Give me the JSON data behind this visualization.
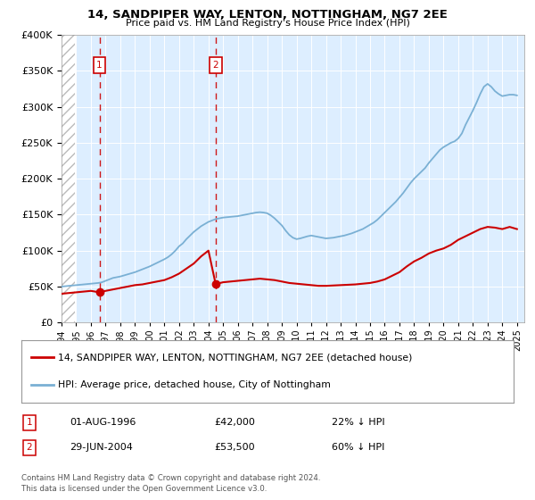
{
  "title": "14, SANDPIPER WAY, LENTON, NOTTINGHAM, NG7 2EE",
  "subtitle": "Price paid vs. HM Land Registry's House Price Index (HPI)",
  "sale1_date": 1996.58,
  "sale1_price": 42000,
  "sale2_date": 2004.49,
  "sale2_price": 53500,
  "legend_line1": "14, SANDPIPER WAY, LENTON, NOTTINGHAM, NG7 2EE (detached house)",
  "legend_line2": "HPI: Average price, detached house, City of Nottingham",
  "ann1_date": "01-AUG-1996",
  "ann1_price": "£42,000",
  "ann1_pct": "22% ↓ HPI",
  "ann2_date": "29-JUN-2004",
  "ann2_price": "£53,500",
  "ann2_pct": "60% ↓ HPI",
  "footer1": "Contains HM Land Registry data © Crown copyright and database right 2024.",
  "footer2": "This data is licensed under the Open Government Licence v3.0.",
  "xmin": 1994,
  "xmax": 2025.5,
  "ymin": 0,
  "ymax": 400000,
  "red_color": "#cc0000",
  "blue_color": "#7ab0d4",
  "bg_color": "#ddeeff",
  "hatch_color": "#bbbbbb",
  "years_hpi": [
    1994.0,
    1994.25,
    1994.5,
    1994.75,
    1995.0,
    1995.25,
    1995.5,
    1995.75,
    1996.0,
    1996.25,
    1996.5,
    1996.75,
    1997.0,
    1997.25,
    1997.5,
    1997.75,
    1998.0,
    1998.25,
    1998.5,
    1998.75,
    1999.0,
    1999.25,
    1999.5,
    1999.75,
    2000.0,
    2000.25,
    2000.5,
    2000.75,
    2001.0,
    2001.25,
    2001.5,
    2001.75,
    2002.0,
    2002.25,
    2002.5,
    2002.75,
    2003.0,
    2003.25,
    2003.5,
    2003.75,
    2004.0,
    2004.25,
    2004.5,
    2004.75,
    2005.0,
    2005.25,
    2005.5,
    2005.75,
    2006.0,
    2006.25,
    2006.5,
    2006.75,
    2007.0,
    2007.25,
    2007.5,
    2007.75,
    2008.0,
    2008.25,
    2008.5,
    2008.75,
    2009.0,
    2009.25,
    2009.5,
    2009.75,
    2010.0,
    2010.25,
    2010.5,
    2010.75,
    2011.0,
    2011.25,
    2011.5,
    2011.75,
    2012.0,
    2012.25,
    2012.5,
    2012.75,
    2013.0,
    2013.25,
    2013.5,
    2013.75,
    2014.0,
    2014.25,
    2014.5,
    2014.75,
    2015.0,
    2015.25,
    2015.5,
    2015.75,
    2016.0,
    2016.25,
    2016.5,
    2016.75,
    2017.0,
    2017.25,
    2017.5,
    2017.75,
    2018.0,
    2018.25,
    2018.5,
    2018.75,
    2019.0,
    2019.25,
    2019.5,
    2019.75,
    2020.0,
    2020.25,
    2020.5,
    2020.75,
    2021.0,
    2021.25,
    2021.5,
    2021.75,
    2022.0,
    2022.25,
    2022.5,
    2022.75,
    2023.0,
    2023.25,
    2023.5,
    2023.75,
    2024.0,
    2024.25,
    2024.5,
    2024.75,
    2025.0
  ],
  "hpi_values": [
    50000,
    50500,
    51000,
    51500,
    52000,
    52500,
    53000,
    53500,
    54000,
    54500,
    55000,
    56000,
    58000,
    60000,
    62000,
    63000,
    64000,
    65500,
    67000,
    68500,
    70000,
    72000,
    74000,
    76000,
    78000,
    80500,
    83000,
    85500,
    88000,
    91000,
    95000,
    100000,
    106000,
    110000,
    116000,
    121000,
    126000,
    130000,
    134000,
    137000,
    140000,
    142000,
    144000,
    145000,
    146000,
    146500,
    147000,
    147500,
    148000,
    149000,
    150000,
    151000,
    152000,
    153000,
    153500,
    153000,
    152000,
    149000,
    145000,
    140000,
    135000,
    128000,
    122000,
    118000,
    116000,
    117000,
    118500,
    120000,
    121000,
    120000,
    119000,
    118000,
    117000,
    117500,
    118000,
    119000,
    120000,
    121000,
    122500,
    124000,
    126000,
    128000,
    130000,
    133000,
    136000,
    139000,
    143000,
    148000,
    153000,
    158000,
    163000,
    168000,
    174000,
    180000,
    187000,
    194000,
    200000,
    205000,
    210000,
    215000,
    222000,
    228000,
    234000,
    240000,
    244000,
    247000,
    250000,
    252000,
    256000,
    263000,
    275000,
    285000,
    295000,
    306000,
    318000,
    328000,
    332000,
    328000,
    322000,
    318000,
    315000,
    316000,
    317000,
    317000,
    316000
  ],
  "years_red": [
    1994.0,
    1994.5,
    1995.0,
    1995.5,
    1996.0,
    1996.58,
    1997.0,
    1997.5,
    1998.0,
    1998.5,
    1999.0,
    1999.5,
    2000.0,
    2000.5,
    2001.0,
    2001.5,
    2002.0,
    2002.5,
    2003.0,
    2003.5,
    2004.0,
    2004.49,
    2005.0,
    2005.5,
    2006.0,
    2006.5,
    2007.0,
    2007.5,
    2008.0,
    2008.5,
    2009.0,
    2009.5,
    2010.0,
    2010.5,
    2011.0,
    2011.5,
    2012.0,
    2012.5,
    2013.0,
    2013.5,
    2014.0,
    2014.5,
    2015.0,
    2015.5,
    2016.0,
    2016.5,
    2017.0,
    2017.5,
    2018.0,
    2018.5,
    2019.0,
    2019.5,
    2020.0,
    2020.5,
    2021.0,
    2021.5,
    2022.0,
    2022.5,
    2023.0,
    2023.5,
    2024.0,
    2024.5,
    2025.0
  ],
  "red_values": [
    40000,
    41000,
    42000,
    43000,
    44000,
    42000,
    44000,
    46000,
    48000,
    50000,
    52000,
    53000,
    55000,
    57000,
    59000,
    63000,
    68000,
    75000,
    82000,
    92000,
    100000,
    53500,
    56000,
    57000,
    58000,
    59000,
    60000,
    61000,
    60000,
    59000,
    57000,
    55000,
    54000,
    53000,
    52000,
    51000,
    51000,
    51500,
    52000,
    52500,
    53000,
    54000,
    55000,
    57000,
    60000,
    65000,
    70000,
    78000,
    85000,
    90000,
    96000,
    100000,
    103000,
    108000,
    115000,
    120000,
    125000,
    130000,
    133000,
    132000,
    130000,
    133000,
    130000
  ]
}
